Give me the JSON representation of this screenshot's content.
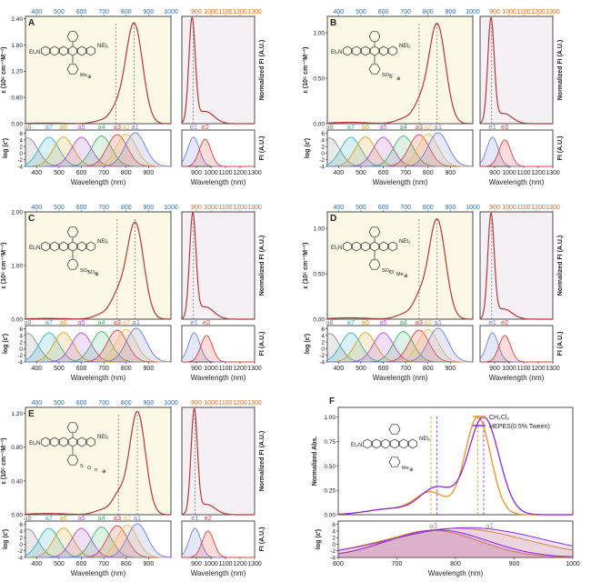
{
  "colors": {
    "fit_line": "#b23a3a",
    "abs_fill": "#fbf8e6",
    "fl_fill": "#f5f0f3",
    "top_axis": "#2a6fb5",
    "fl_top_axis": "#d2691e",
    "ch2cl2": "#f0921e",
    "hepes": "#8a2be2",
    "gauss": {
      "a1": "#6f7fd8",
      "a2": "#f5b95a",
      "a3": "#e2403a",
      "a4": "#45b36b",
      "a5": "#b04fd8",
      "a6": "#d9a21a",
      "a7": "#2fb2c9",
      "a8": "#8a8a8a",
      "e1": "#6f7fd8",
      "e2": "#e2403a"
    }
  },
  "chart_data": [
    {
      "panel": "A",
      "type": "line",
      "structure_labels": [
        "Et₂N",
        "NEt₂",
        "Me",
        "⊕"
      ],
      "abs": {
        "ylabel": "ε (10⁵ cm⁻¹M⁻¹)",
        "yticks": [
          "0.00",
          "0.60",
          "1.20",
          "1.80",
          "2.40"
        ],
        "ylim": [
          0,
          2.45
        ],
        "xlim": [
          350,
          1000
        ],
        "top_ticks": [
          "400",
          "500",
          "600",
          "700",
          "800",
          "900",
          "1000"
        ],
        "peaks": [
          [
            835,
            2.3,
            38
          ],
          [
            755,
            0.25,
            28
          ],
          [
            700,
            0.08,
            40
          ]
        ],
        "marker_lines": [
          755,
          835
        ],
        "gauss_sub": {
          "ylabel": "log (ε′)",
          "yticks": [
            "-4",
            "-2",
            "0",
            "2",
            "4",
            "6"
          ],
          "ylim": [
            -4,
            7
          ],
          "bands": [
            [
              "a8",
              360,
              4.6
            ],
            [
              "a7",
              455,
              4.8
            ],
            [
              "a6",
              520,
              4.9
            ],
            [
              "a5",
              600,
              4.8
            ],
            [
              "a4",
              690,
              5.2
            ],
            [
              "a3",
              760,
              5.6
            ],
            [
              "a2",
              800,
              5.8
            ],
            [
              "a1",
              840,
              6.2
            ]
          ]
        },
        "xlabel": "Wavelength (nm)",
        "xticks": [
          "400",
          "500",
          "600",
          "700",
          "800",
          "900"
        ]
      },
      "fl": {
        "ylabel": "Normalized FI (A.U.)",
        "xlim": [
          800,
          1300
        ],
        "top_ticks": [
          "900",
          "1000",
          "1100",
          "1200",
          "1300"
        ],
        "peaks": [
          [
            870,
            1.0,
            22
          ],
          [
            960,
            0.12,
            60
          ]
        ],
        "marker_line": 878,
        "gauss_sub": {
          "ylabel": "FI (A.U.)",
          "ylim": [
            -4,
            7
          ],
          "bands": [
            [
              "e1",
              880,
              4.8
            ],
            [
              "e2",
              960,
              4.2
            ]
          ]
        },
        "xlabel": "Wavelength (nm)",
        "xticks": [
          "900",
          "1000",
          "1100",
          "1200",
          "1300"
        ]
      }
    },
    {
      "panel": "B",
      "type": "line",
      "structure_labels": [
        "Et₂N",
        "NEt₂",
        "SO₃⁻",
        "S",
        "⊕"
      ],
      "abs": {
        "ylabel": "ε (10⁵ cm⁻¹M⁻¹)",
        "yticks": [
          "0.00",
          "0.50",
          "1.00"
        ],
        "ylim": [
          0,
          1.18
        ],
        "xlim": [
          350,
          1000
        ],
        "top_ticks": [
          "400",
          "500",
          "600",
          "700",
          "800",
          "900",
          "1000"
        ],
        "peaks": [
          [
            840,
            1.1,
            38
          ],
          [
            760,
            0.16,
            28
          ],
          [
            700,
            0.06,
            40
          ]
        ],
        "marker_lines": [
          760,
          840
        ],
        "gauss_sub": {
          "ylabel": "log (ε′)",
          "yticks": [
            "-4",
            "-2",
            "0",
            "2",
            "4",
            "6"
          ],
          "ylim": [
            -4,
            7
          ],
          "bands": [
            [
              "a8",
              360,
              4.6
            ],
            [
              "a7",
              455,
              4.8
            ],
            [
              "a6",
              520,
              4.9
            ],
            [
              "a5",
              600,
              4.8
            ],
            [
              "a4",
              690,
              5.2
            ],
            [
              "a3",
              760,
              5.6
            ],
            [
              "a2",
              800,
              5.8
            ],
            [
              "a1",
              845,
              6.2
            ]
          ]
        },
        "xlabel": "Wavelength (nm)",
        "xticks": [
          "400",
          "500",
          "600",
          "700",
          "800",
          "900"
        ]
      },
      "fl": {
        "ylabel": "Normalized FI (A.U.)",
        "xlim": [
          800,
          1300
        ],
        "top_ticks": [
          "900",
          "1000",
          "1100",
          "1200",
          "1300"
        ],
        "peaks": [
          [
            875,
            1.0,
            22
          ],
          [
            960,
            0.1,
            60
          ]
        ],
        "marker_line": 880,
        "gauss_sub": {
          "ylabel": "FI (A.U.)",
          "ylim": [
            -4,
            7
          ],
          "bands": [
            [
              "e1",
              885,
              4.8
            ],
            [
              "e2",
              970,
              4.0
            ]
          ]
        },
        "xlabel": "Wavelength (nm)",
        "xticks": [
          "900",
          "1000",
          "1100",
          "1200",
          "1300"
        ]
      }
    },
    {
      "panel": "C",
      "type": "line",
      "structure_labels": [
        "Et₂N",
        "NEt₂",
        "SO₃",
        "SO₃",
        "⊕"
      ],
      "abs": {
        "ylabel": "ε (10⁵ cm⁻¹M⁻¹)",
        "yticks": [
          "0.00",
          "1.00",
          "2.00"
        ],
        "ylim": [
          0,
          2.0
        ],
        "xlim": [
          350,
          1000
        ],
        "top_ticks": [
          "400",
          "500",
          "600",
          "700",
          "800",
          "900",
          "1000"
        ],
        "peaks": [
          [
            840,
            1.8,
            38
          ],
          [
            760,
            0.35,
            30
          ],
          [
            700,
            0.1,
            40
          ]
        ],
        "marker_lines": [
          760,
          840
        ],
        "gauss_sub": {
          "ylabel": "log (ε′)",
          "yticks": [
            "-4",
            "-2",
            "0",
            "2",
            "4",
            "6"
          ],
          "ylim": [
            -4,
            7
          ],
          "bands": [
            [
              "a8",
              360,
              4.6
            ],
            [
              "a7",
              455,
              4.8
            ],
            [
              "a6",
              520,
              4.9
            ],
            [
              "a5",
              600,
              4.8
            ],
            [
              "a4",
              690,
              5.2
            ],
            [
              "a3",
              760,
              5.6
            ],
            [
              "a2",
              800,
              5.8
            ],
            [
              "a1",
              845,
              6.2
            ]
          ]
        },
        "xlabel": "Wavelength (nm)",
        "xticks": [
          "400",
          "500",
          "600",
          "700",
          "800",
          "900"
        ]
      },
      "fl": {
        "ylabel": "Normalized FI (A.U.)",
        "xlim": [
          800,
          1300
        ],
        "top_ticks": [
          "900",
          "1000",
          "1100",
          "1200",
          "1300"
        ],
        "peaks": [
          [
            875,
            1.0,
            22
          ],
          [
            960,
            0.12,
            60
          ]
        ],
        "marker_line": 880,
        "gauss_sub": {
          "ylabel": "FI (A.U.)",
          "ylim": [
            -4,
            7
          ],
          "bands": [
            [
              "e1",
              885,
              4.8
            ],
            [
              "e2",
              970,
              4.0
            ]
          ]
        },
        "xlabel": "Wavelength (nm)",
        "xticks": [
          "900",
          "1000",
          "1100",
          "1200",
          "1300"
        ]
      }
    },
    {
      "panel": "D",
      "type": "line",
      "structure_labels": [
        "Et₂N",
        "NEt₂",
        "SO₃",
        "Cl",
        "Me",
        "⊕"
      ],
      "abs": {
        "ylabel": "ε (10⁵ cm⁻¹M⁻¹)",
        "yticks": [
          "0.00",
          "0.50",
          "1.00"
        ],
        "ylim": [
          0,
          1.18
        ],
        "xlim": [
          350,
          1000
        ],
        "top_ticks": [
          "400",
          "500",
          "600",
          "700",
          "800",
          "900",
          "1000"
        ],
        "peaks": [
          [
            840,
            1.1,
            38
          ],
          [
            760,
            0.18,
            28
          ],
          [
            700,
            0.06,
            40
          ]
        ],
        "marker_lines": [
          760,
          840
        ],
        "gauss_sub": {
          "ylabel": "log (ε′)",
          "yticks": [
            "-4",
            "-2",
            "0",
            "2",
            "4",
            "6"
          ],
          "ylim": [
            -4,
            7
          ],
          "bands": [
            [
              "a8",
              360,
              4.6
            ],
            [
              "a7",
              455,
              4.8
            ],
            [
              "a6",
              520,
              4.9
            ],
            [
              "a5",
              600,
              4.8
            ],
            [
              "a4",
              690,
              5.2
            ],
            [
              "a3",
              760,
              5.6
            ],
            [
              "a2",
              800,
              5.8
            ],
            [
              "a1",
              845,
              6.2
            ]
          ]
        },
        "xlabel": "Wavelength (nm)",
        "xticks": [
          "400",
          "500",
          "600",
          "700",
          "800",
          "900"
        ]
      },
      "fl": {
        "ylabel": "Normalized FI (A.U.)",
        "xlim": [
          800,
          1300
        ],
        "top_ticks": [
          "900",
          "1000",
          "1100",
          "1200",
          "1300"
        ],
        "peaks": [
          [
            875,
            1.0,
            22
          ],
          [
            960,
            0.1,
            60
          ]
        ],
        "marker_line": 880,
        "gauss_sub": {
          "ylabel": "FI (A.U.)",
          "ylim": [
            -4,
            7
          ],
          "bands": [
            [
              "e1",
              885,
              4.8
            ],
            [
              "e2",
              970,
              4.0
            ]
          ]
        },
        "xlabel": "Wavelength (nm)",
        "xticks": [
          "900",
          "1000",
          "1100",
          "1200",
          "1300"
        ]
      }
    },
    {
      "panel": "E",
      "type": "line",
      "structure_labels": [
        "Et₂N",
        "NEt₂",
        "S",
        "O",
        "n",
        "⊕"
      ],
      "abs": {
        "ylabel": "ε (10⁵ cm⁻¹M⁻¹)",
        "yticks": [
          "0.00",
          "0.40",
          "0.80",
          "1.20"
        ],
        "ylim": [
          0,
          1.27
        ],
        "xlim": [
          350,
          1000
        ],
        "top_ticks": [
          "400",
          "500",
          "600",
          "700",
          "800",
          "900",
          "1000"
        ],
        "peaks": [
          [
            850,
            1.22,
            36
          ],
          [
            765,
            0.2,
            28
          ],
          [
            700,
            0.06,
            40
          ]
        ],
        "marker_lines": [
          765,
          850
        ],
        "gauss_sub": {
          "ylabel": "log (ε′)",
          "yticks": [
            "-4",
            "-2",
            "0",
            "2",
            "4",
            "6"
          ],
          "ylim": [
            -4,
            7
          ],
          "bands": [
            [
              "a8",
              360,
              4.6
            ],
            [
              "a7",
              455,
              4.8
            ],
            [
              "a6",
              520,
              4.9
            ],
            [
              "a5",
              600,
              4.8
            ],
            [
              "a4",
              690,
              5.2
            ],
            [
              "a3",
              760,
              5.6
            ],
            [
              "a2",
              805,
              5.8
            ],
            [
              "a1",
              850,
              6.2
            ]
          ]
        },
        "xlabel": "Wavelength (nm)",
        "xticks": [
          "400",
          "500",
          "600",
          "700",
          "800",
          "900"
        ]
      },
      "fl": {
        "ylabel": "Normalized FI (A.U.)",
        "xlim": [
          800,
          1300
        ],
        "top_ticks": [
          "900",
          "1000",
          "1100",
          "1200",
          "1300"
        ],
        "peaks": [
          [
            885,
            1.0,
            22
          ],
          [
            970,
            0.1,
            60
          ]
        ],
        "marker_line": 890,
        "gauss_sub": {
          "ylabel": "FI (A.U.)",
          "ylim": [
            -4,
            7
          ],
          "bands": [
            [
              "e1",
              890,
              4.8
            ],
            [
              "e2",
              980,
              4.0
            ]
          ]
        },
        "xlabel": "Wavelength (nm)",
        "xticks": [
          "900",
          "1000",
          "1100",
          "1200",
          "1300"
        ]
      }
    },
    {
      "panel": "F",
      "type": "line",
      "structure_labels": [
        "Et₂N",
        "NEt₂",
        "Me",
        "⊕"
      ],
      "ylabel": "Normalized Abs.",
      "yticks": [
        "0.00",
        "0.25",
        "0.50",
        "0.75",
        "1.00"
      ],
      "ylim": [
        0,
        1.1
      ],
      "xlim": [
        600,
        1000
      ],
      "xticks": [
        "600",
        "700",
        "800",
        "900",
        "1000"
      ],
      "xlabel": "Wavelength (nm)",
      "legend_position": "top-right",
      "series": [
        {
          "name": "CH₂Cl₂",
          "peaks": [
            [
              838,
              1.0,
              22
            ],
            [
              758,
              0.22,
              26
            ],
            [
              690,
              0.06,
              40
            ]
          ]
        },
        {
          "name": "HEPES(0.5% Tween)",
          "peaks": [
            [
              848,
              1.0,
              26
            ],
            [
              768,
              0.27,
              28
            ],
            [
              690,
              0.06,
              40
            ]
          ]
        }
      ],
      "marker_lines": [
        758,
        768,
        838,
        848
      ],
      "gauss_sub": {
        "ylabel": "log (ε′)",
        "yticks": [
          "-4",
          "-2",
          "0",
          "2",
          "4",
          "6"
        ],
        "ylim": [
          -4,
          7
        ],
        "band_labels": [
          "a3",
          "a1"
        ],
        "series_bands": [
          [
            [
              800,
              4.8,
              120
            ],
            [
              760,
              4.2,
              80
            ]
          ],
          [
            [
              820,
              5.0,
              130
            ],
            [
              770,
              4.3,
              85
            ]
          ]
        ]
      }
    }
  ]
}
